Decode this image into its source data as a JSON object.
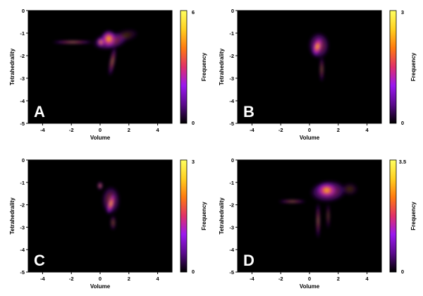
{
  "colormap": {
    "name": "black-purple-red-yellow",
    "stops": [
      "#000000",
      "#5a0a8c",
      "#9a18f0",
      "#e0306a",
      "#ff7a10",
      "#ffd020",
      "#ffff60"
    ]
  },
  "chart_data": [
    {
      "type": "heatmap",
      "panel_label": "A",
      "xlabel": "Volume",
      "ylabel": "Tetrahedrality",
      "colorbar_label": "Frequency",
      "xlim": [
        -5,
        5
      ],
      "ylim": [
        -5,
        0
      ],
      "x_ticks": [
        -4,
        -2,
        0,
        2,
        4
      ],
      "y_ticks": [
        0,
        -1,
        -2,
        -3,
        -4,
        -5
      ],
      "colorbar_range": [
        0,
        6
      ],
      "colorbar_ticks": [
        "0",
        "6"
      ],
      "blobs": [
        {
          "x": 0.7,
          "y": -1.35,
          "sx": 1.25,
          "sy": 0.38,
          "rot": -10,
          "a": 0.55
        },
        {
          "x": 0.6,
          "y": -1.25,
          "sx": 0.55,
          "sy": 0.4,
          "rot": 0,
          "a": 0.9
        },
        {
          "x": -1.9,
          "y": -1.4,
          "sx": 1.5,
          "sy": 0.07,
          "rot": 0,
          "a": 0.7
        },
        {
          "x": 0.85,
          "y": -2.25,
          "sx": 0.2,
          "sy": 0.7,
          "rot": 10,
          "a": 0.55
        },
        {
          "x": 0.05,
          "y": -1.4,
          "sx": 0.28,
          "sy": 0.22,
          "rot": 0,
          "a": 0.8
        },
        {
          "x": 1.8,
          "y": -1.1,
          "sx": 0.9,
          "sy": 0.28,
          "rot": -12,
          "a": 0.22
        }
      ]
    },
    {
      "type": "heatmap",
      "panel_label": "B",
      "xlabel": "Volume",
      "ylabel": "Tetrahedrality",
      "colorbar_label": "Frequency",
      "xlim": [
        -5,
        5
      ],
      "ylim": [
        -5,
        0
      ],
      "x_ticks": [
        -4,
        -2,
        0,
        2,
        4
      ],
      "y_ticks": [
        0,
        -1,
        -2,
        -3,
        -4,
        -5
      ],
      "colorbar_range": [
        0,
        3
      ],
      "colorbar_ticks": [
        "0",
        "3"
      ],
      "blobs": [
        {
          "x": 0.65,
          "y": -1.55,
          "sx": 0.75,
          "sy": 0.6,
          "rot": 0,
          "a": 0.5
        },
        {
          "x": 0.55,
          "y": -1.6,
          "sx": 0.35,
          "sy": 0.45,
          "rot": 15,
          "a": 0.95
        },
        {
          "x": 0.85,
          "y": -2.6,
          "sx": 0.16,
          "sy": 0.6,
          "rot": 0,
          "a": 0.45
        }
      ]
    },
    {
      "type": "heatmap",
      "panel_label": "C",
      "xlabel": "Volume",
      "ylabel": "Tetrahedrality",
      "colorbar_label": "Frequency",
      "xlim": [
        -5,
        5
      ],
      "ylim": [
        -5,
        0
      ],
      "x_ticks": [
        -4,
        -2,
        0,
        2,
        4
      ],
      "y_ticks": [
        0,
        -1,
        -2,
        -3,
        -4,
        -5
      ],
      "colorbar_range": [
        0,
        3
      ],
      "colorbar_ticks": [
        "0",
        "3"
      ],
      "blobs": [
        {
          "x": 0.75,
          "y": -1.8,
          "sx": 0.65,
          "sy": 0.65,
          "rot": 0,
          "a": 0.45
        },
        {
          "x": 0.75,
          "y": -1.95,
          "sx": 0.25,
          "sy": 0.5,
          "rot": 15,
          "a": 0.9
        },
        {
          "x": 0.0,
          "y": -1.15,
          "sx": 0.18,
          "sy": 0.18,
          "rot": 0,
          "a": 0.75
        },
        {
          "x": 0.9,
          "y": -2.8,
          "sx": 0.2,
          "sy": 0.35,
          "rot": 0,
          "a": 0.4
        }
      ]
    },
    {
      "type": "heatmap",
      "panel_label": "D",
      "xlabel": "Volume",
      "ylabel": "Tetrahedrality",
      "colorbar_label": "Frequency",
      "xlim": [
        -5,
        5
      ],
      "ylim": [
        -5,
        0
      ],
      "x_ticks": [
        -4,
        -2,
        0,
        2,
        4
      ],
      "y_ticks": [
        0,
        -1,
        -2,
        -3,
        -4,
        -5
      ],
      "colorbar_range": [
        0,
        3.5
      ],
      "colorbar_ticks": [
        "0",
        "3.5"
      ],
      "blobs": [
        {
          "x": 1.3,
          "y": -1.4,
          "sx": 1.3,
          "sy": 0.5,
          "rot": -5,
          "a": 0.55
        },
        {
          "x": 1.2,
          "y": -1.35,
          "sx": 0.75,
          "sy": 0.35,
          "rot": 0,
          "a": 0.9
        },
        {
          "x": -1.2,
          "y": -1.85,
          "sx": 1.0,
          "sy": 0.08,
          "rot": 0,
          "a": 0.55
        },
        {
          "x": 0.6,
          "y": -2.7,
          "sx": 0.14,
          "sy": 0.85,
          "rot": 0,
          "a": 0.55
        },
        {
          "x": 1.3,
          "y": -2.5,
          "sx": 0.12,
          "sy": 0.6,
          "rot": 0,
          "a": 0.4
        },
        {
          "x": 2.8,
          "y": -1.3,
          "sx": 0.6,
          "sy": 0.3,
          "rot": 0,
          "a": 0.22
        }
      ]
    }
  ]
}
